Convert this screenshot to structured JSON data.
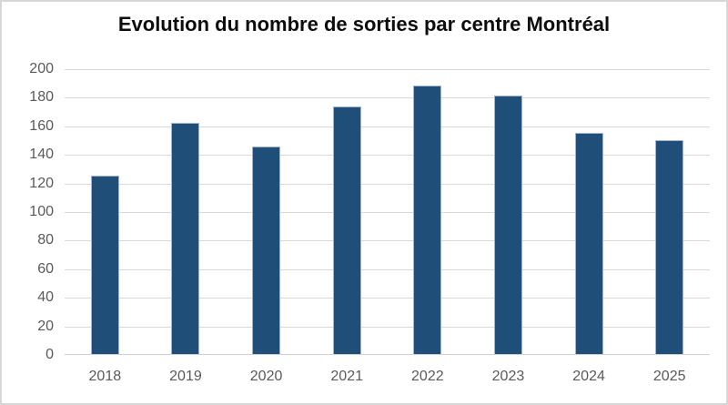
{
  "chart_data": {
    "type": "bar",
    "title": "Evolution du nombre de sorties par centre Montréal",
    "categories": [
      "2018",
      "2019",
      "2020",
      "2021",
      "2022",
      "2023",
      "2024",
      "2025"
    ],
    "values": [
      125,
      162,
      145,
      173,
      188,
      181,
      155,
      150
    ],
    "xlabel": "",
    "ylabel": "",
    "ylim": [
      0,
      200
    ],
    "yticks": [
      0,
      20,
      40,
      60,
      80,
      100,
      120,
      140,
      160,
      180,
      200
    ],
    "grid": true,
    "legend_position": "none",
    "colors": {
      "bar_fill": "#1f4e79",
      "bar_border": "#a0b5d4",
      "gridline": "#d9d9d9",
      "axis_labels": "#595959",
      "title": "#0d0d0d",
      "chart_border": "#d7d7d7",
      "background": "#ffffff"
    }
  }
}
